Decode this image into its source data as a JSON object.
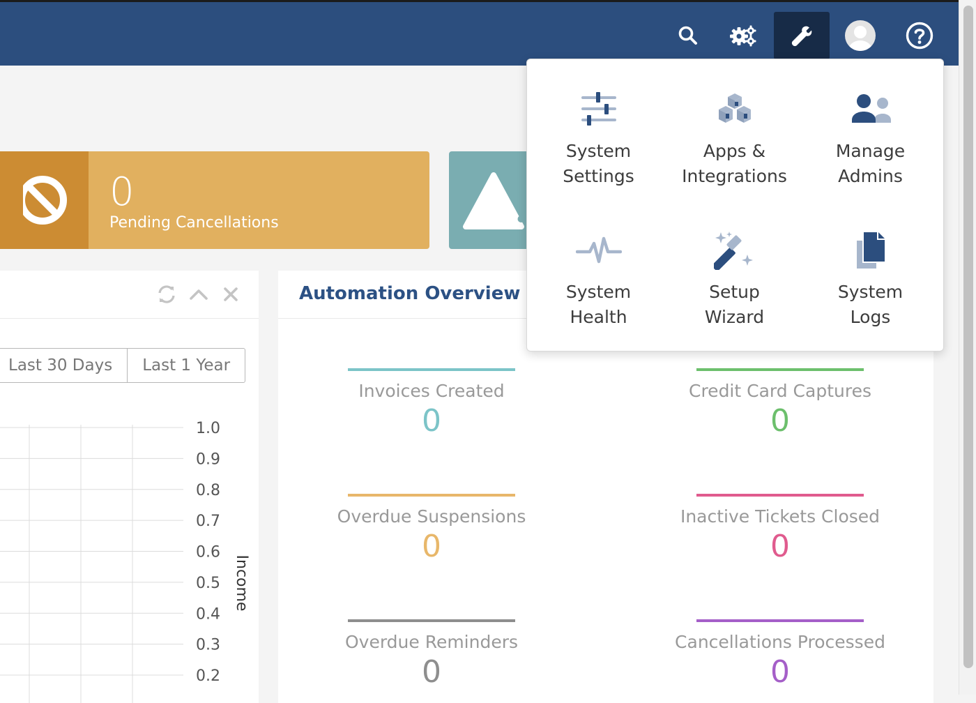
{
  "colors": {
    "navbar": "#2c4e7e",
    "active_button": "#172b47",
    "pending_card": "#e1b05f",
    "pending_icon_bg": "#cc8c33",
    "teal_card": "#7aadb1",
    "title_blue": "#2c5184"
  },
  "navbar": {
    "icons": [
      "search-icon",
      "gears-icon",
      "wrench-icon",
      "user-avatar-icon",
      "help-icon"
    ]
  },
  "stats": {
    "pending_cancellations": {
      "value": "0",
      "label": "Pending Cancellations",
      "icon": "ban-icon"
    },
    "next_card_icon": "warning-icon"
  },
  "income_panel": {
    "tools": [
      "refresh-icon",
      "collapse-icon",
      "close-icon"
    ],
    "ranges": [
      "Last 30 Days",
      "Last 1 Year"
    ],
    "chart_data": {
      "type": "line",
      "ylabel": "Income",
      "ylim": [
        0.2,
        1.0
      ],
      "y_ticks": [
        "1.0",
        "0.9",
        "0.8",
        "0.7",
        "0.6",
        "0.5",
        "0.4",
        "0.3",
        "0.2"
      ],
      "grid": true,
      "series": []
    }
  },
  "automation": {
    "title": "Automation Overview",
    "metrics": [
      {
        "label": "Invoices Created",
        "value": "0",
        "color": "#7cc4c8"
      },
      {
        "label": "Credit Card Captures",
        "value": "0",
        "color": "#6cbf6c"
      },
      {
        "label": "Overdue Suspensions",
        "value": "0",
        "color": "#e8b76a"
      },
      {
        "label": "Inactive Tickets Closed",
        "value": "0",
        "color": "#e05b8e"
      },
      {
        "label": "Overdue Reminders",
        "value": "0",
        "color": "#8e8e8e"
      },
      {
        "label": "Cancellations Processed",
        "value": "0",
        "color": "#a55fc8"
      }
    ]
  },
  "config_menu": {
    "items": [
      {
        "line1": "System",
        "line2": "Settings",
        "icon": "sliders-icon"
      },
      {
        "line1": "Apps &",
        "line2": "Integrations",
        "icon": "cubes-icon"
      },
      {
        "line1": "Manage",
        "line2": "Admins",
        "icon": "users-icon"
      },
      {
        "line1": "System",
        "line2": "Health",
        "icon": "heartbeat-icon"
      },
      {
        "line1": "Setup",
        "line2": "Wizard",
        "icon": "magic-wand-icon"
      },
      {
        "line1": "System",
        "line2": "Logs",
        "icon": "copy-icon"
      }
    ]
  }
}
